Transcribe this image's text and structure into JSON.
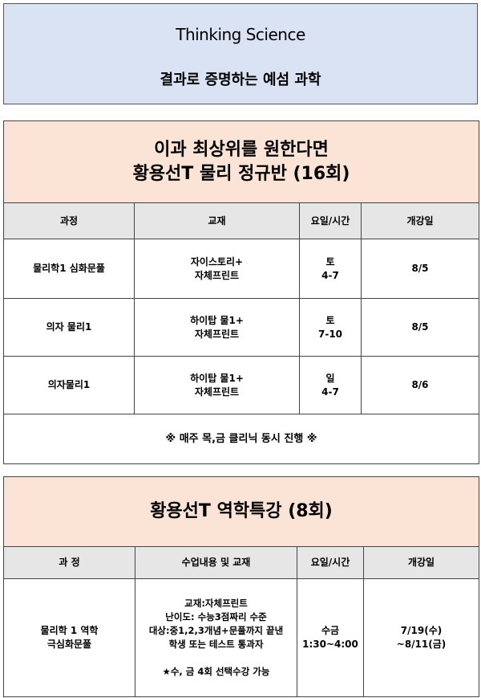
{
  "header": {
    "title": "Thinking Science",
    "subtitle": "결과로 증명하는 예섬 과학"
  },
  "regular": {
    "title_line1": "이과 최상위를 원한다면",
    "title_line2": "황용선T 물리 정규반 (16회)",
    "columns": [
      "과정",
      "교재",
      "요일/시간",
      "개강일"
    ],
    "rows": [
      {
        "course": "물리학1 심화문풀",
        "book1": "자이스토리+",
        "book2": "자체프린트",
        "day": "토",
        "time": "4-7",
        "start": "8/5"
      },
      {
        "course": "의자 물리1",
        "book1": "하이탑 물1+",
        "book2": "자체프린트",
        "day": "토",
        "time": "7-10",
        "start": "8/5"
      },
      {
        "course": "의자물리1",
        "book1": "하이탑 물1+",
        "book2": "자체프린트",
        "day": "일",
        "time": "4-7",
        "start": "8/6"
      }
    ],
    "note": "※ 매주 목,금 클리닉 동시 진행 ※"
  },
  "special": {
    "title": "황용선T 역학특강 (8회)",
    "columns": [
      "과 정",
      "수업내용 및 교재",
      "요일/시간",
      "개강일"
    ],
    "row": {
      "course1": "물리학 1 역학",
      "course2": "극심화문풀",
      "content": [
        "교재:자체프린트",
        "난이도: 수능3점짜리 수준",
        "대상:중1,2,3개념+문풀까지 끝낸",
        "학생 또는 테스트 통과자"
      ],
      "content_note": "★수, 금 4회 선택수강 가능",
      "day": "수금",
      "time": "1:30~4:00",
      "start1": "7/19(수)",
      "start2": "~8/11(금)"
    }
  }
}
